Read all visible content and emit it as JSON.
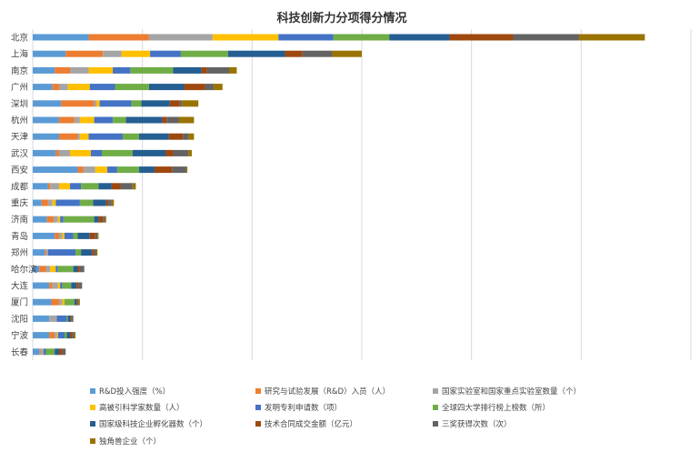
{
  "chart_data": {
    "type": "bar",
    "orientation": "horizontal",
    "stacked": true,
    "title": "科技创新力分项得分情况",
    "categories": [
      "北京",
      "上海",
      "南京",
      "广州",
      "深圳",
      "杭州",
      "天津",
      "武汉",
      "西安",
      "成都",
      "重庆",
      "济南",
      "青岛",
      "郑州",
      "哈尔滨",
      "大连",
      "厦门",
      "沈阳",
      "宁波",
      "长春"
    ],
    "xlim": [
      0,
      600
    ],
    "grid": "vertical",
    "legend_position": "bottom",
    "series": [
      {
        "name": "R&D投入强度（%）",
        "color": "#5b9bd5",
        "values": [
          51,
          30,
          20,
          18,
          26,
          24,
          24,
          21,
          41,
          14,
          8,
          13,
          20,
          11,
          6,
          15,
          17,
          15,
          15,
          6
        ]
      },
      {
        "name": "研究与试验发展（R&D）入员（人）",
        "color": "#ed7d31",
        "values": [
          55,
          34,
          14,
          6,
          30,
          14,
          17,
          3,
          5,
          2,
          6,
          6,
          4,
          1,
          6,
          3,
          7,
          0,
          5,
          1
        ]
      },
      {
        "name": "国家实验室和国家重点实验室数量（个）",
        "color": "#a5a5a5",
        "values": [
          58,
          17,
          17,
          8,
          2,
          5,
          2,
          10,
          11,
          8,
          4,
          4,
          3,
          2,
          4,
          5,
          3,
          7,
          2,
          3
        ]
      },
      {
        "name": "高被引科学家数量（人）",
        "color": "#ffc000",
        "values": [
          60,
          26,
          22,
          20,
          3,
          13,
          8,
          19,
          11,
          10,
          3,
          2,
          2,
          0,
          5,
          2,
          2,
          0,
          1,
          0
        ]
      },
      {
        "name": "发明专利申请数（项）",
        "color": "#4472c4",
        "values": [
          50,
          28,
          16,
          23,
          29,
          17,
          31,
          10,
          9,
          10,
          22,
          3,
          8,
          25,
          2,
          2,
          0,
          9,
          6,
          2
        ]
      },
      {
        "name": "全球四大学排行榜上榜数（所）",
        "color": "#70ad47",
        "values": [
          51,
          43,
          39,
          31,
          9,
          12,
          15,
          28,
          20,
          16,
          12,
          28,
          4,
          5,
          14,
          8,
          9,
          1,
          2,
          8
        ]
      },
      {
        "name": "国家级科技企业孵化器数（个）",
        "color": "#255e91",
        "values": [
          55,
          52,
          26,
          32,
          26,
          33,
          27,
          30,
          14,
          12,
          12,
          4,
          11,
          10,
          4,
          5,
          2,
          2,
          3,
          4
        ]
      },
      {
        "name": "技术合同成交金额（亿元）",
        "color": "#9e480e",
        "values": [
          58,
          16,
          5,
          19,
          9,
          4,
          13,
          7,
          16,
          8,
          2,
          4,
          5,
          2,
          2,
          2,
          1,
          1,
          2,
          3
        ]
      },
      {
        "name": "三奖获得次数（次）",
        "color": "#636363",
        "values": [
          60,
          27,
          20,
          8,
          2,
          11,
          5,
          14,
          13,
          11,
          3,
          2,
          2,
          2,
          4,
          3,
          1,
          2,
          2,
          3
        ]
      },
      {
        "name": "独角兽企业（个）",
        "color": "#997300",
        "values": [
          60,
          27,
          7,
          8,
          15,
          14,
          5,
          3,
          1,
          3,
          2,
          1,
          1,
          1,
          0,
          0,
          1,
          0,
          1,
          0
        ]
      }
    ]
  }
}
